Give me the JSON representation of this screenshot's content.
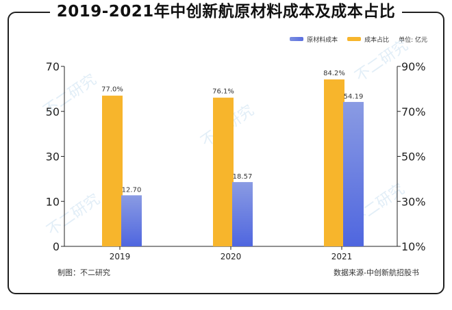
{
  "title": "2019-2021年中创新航原材料成本及成本占比",
  "legend": {
    "series1": "原材料成本",
    "series2": "成本占比",
    "unit": "单位: 亿元"
  },
  "footer": {
    "left": "制图：不二研究",
    "right": "数据来源-中创新航招股书"
  },
  "watermark": "不二研究",
  "colors": {
    "blue_top": "#8a9be3",
    "blue_bottom": "#4f66df",
    "orange": "#f7b52c",
    "axis": "#222222"
  },
  "chart_data": {
    "type": "bar",
    "title": "2019-2021年中创新航原材料成本及成本占比",
    "categories": [
      "2019",
      "2020",
      "2021"
    ],
    "series": [
      {
        "name": "成本占比",
        "axis": "right",
        "values": [
          77.0,
          76.1,
          84.2
        ],
        "labels": [
          "77.0%",
          "76.1%",
          "84.2%"
        ]
      },
      {
        "name": "原材料成本",
        "axis": "left",
        "values": [
          12.7,
          18.57,
          54.19
        ],
        "labels": [
          "12.70",
          "18.57",
          "54.19"
        ]
      }
    ],
    "left_axis": {
      "ticks": [
        0,
        10,
        30,
        50,
        70
      ],
      "tick_labels": [
        "0",
        "10",
        "30",
        "50",
        "70"
      ]
    },
    "right_axis": {
      "ticks": [
        10,
        30,
        50,
        70,
        90
      ],
      "tick_labels": [
        "10%",
        "30%",
        "50%",
        "70%",
        "90%"
      ]
    },
    "xlabel": "",
    "ylabel": ""
  }
}
